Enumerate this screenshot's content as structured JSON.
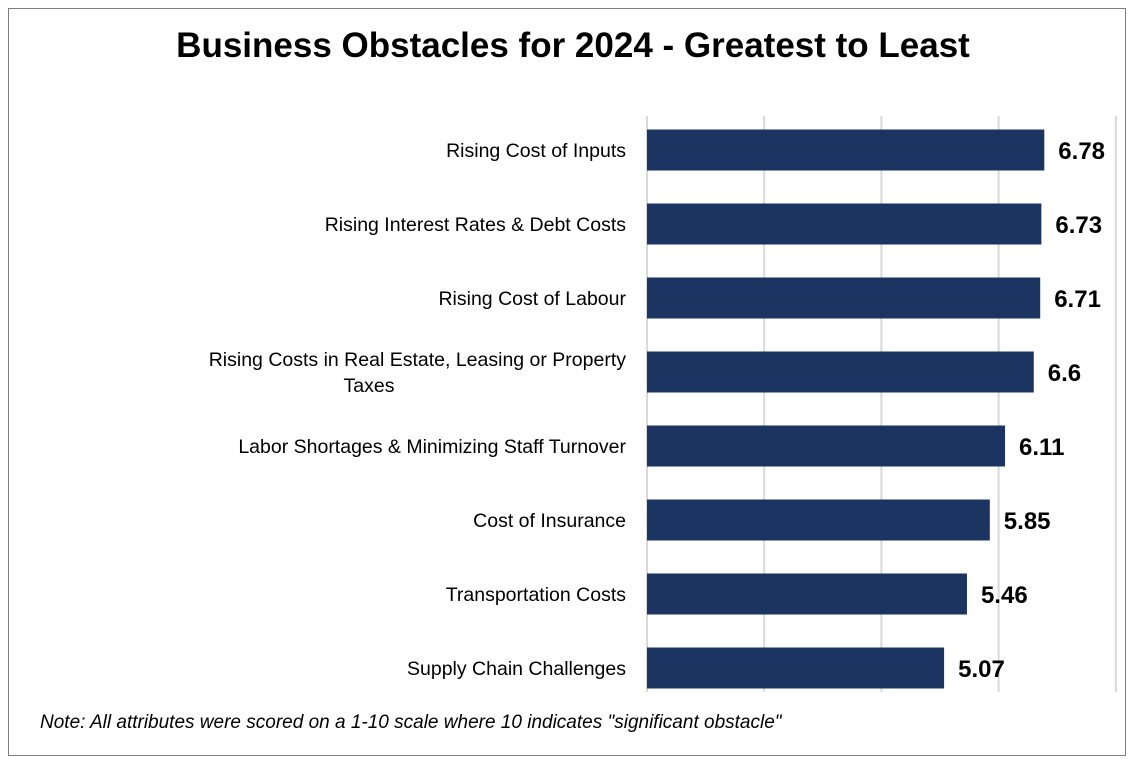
{
  "chart_data": {
    "type": "bar",
    "orientation": "horizontal",
    "title": "Business Obstacles for 2024 - Greatest to Least",
    "categories": [
      [
        "Rising Cost of Inputs"
      ],
      [
        "Rising Interest Rates & Debt Costs"
      ],
      [
        "Rising Cost of Labour"
      ],
      [
        "Rising Costs in Real Estate, Leasing or Property",
        "Taxes"
      ],
      [
        "Labor Shortages & Minimizing Staff Turnover"
      ],
      [
        "Cost of Insurance"
      ],
      [
        "Transportation Costs"
      ],
      [
        "Supply Chain Challenges"
      ]
    ],
    "values": [
      6.78,
      6.73,
      6.71,
      6.6,
      6.11,
      5.85,
      5.46,
      5.07
    ],
    "value_labels": [
      "6.78",
      "6.73",
      "6.71",
      "6.6",
      "6.11",
      "5.85",
      "5.46",
      "5.07"
    ],
    "xlim": [
      0,
      8
    ],
    "grid": true,
    "bar_color": "#1b3461",
    "grid_color": "#d9d9d9",
    "note": "Note: All attributes were scored on a 1-10 scale where 10 indicates \"significant obstacle\""
  }
}
